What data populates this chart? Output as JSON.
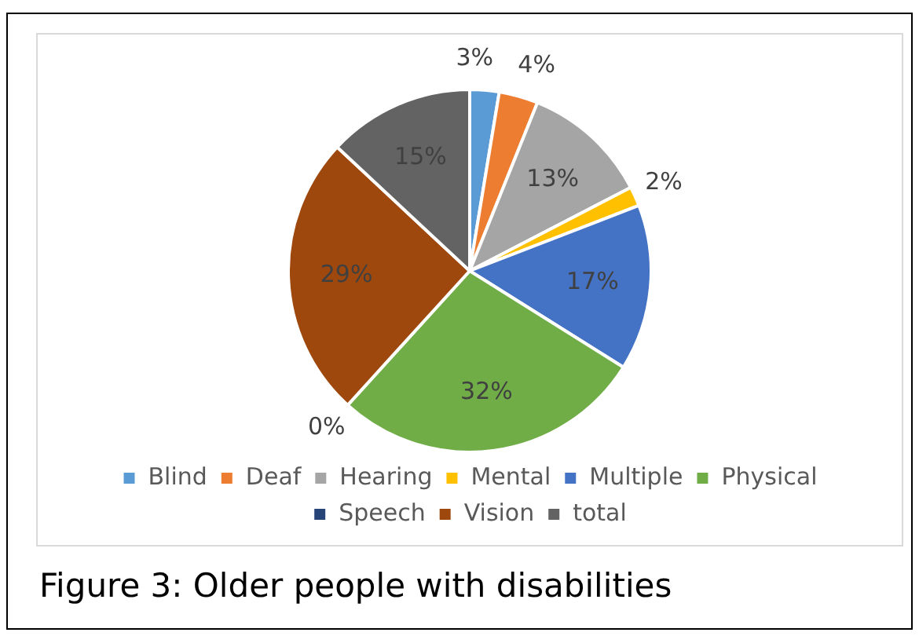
{
  "chart_data": {
    "type": "pie",
    "categories": [
      "Blind",
      "Deaf",
      "Hearing",
      "Mental",
      "Multiple",
      "Physical",
      "Speech",
      "Vision",
      "total"
    ],
    "values": [
      3,
      4,
      13,
      2,
      17,
      32,
      0,
      29,
      15
    ],
    "colors": [
      "#5b9bd5",
      "#ed7d31",
      "#a5a5a5",
      "#ffc000",
      "#4472c4",
      "#70ad47",
      "#264478",
      "#9e480e",
      "#636363"
    ],
    "value_labels": [
      "3%",
      "4%",
      "13%",
      "2%",
      "17%",
      "32%",
      "0%",
      "29%",
      "15%"
    ],
    "legend": "bottom",
    "annotations": [
      "Figure 3: Older people with disabilities"
    ]
  }
}
